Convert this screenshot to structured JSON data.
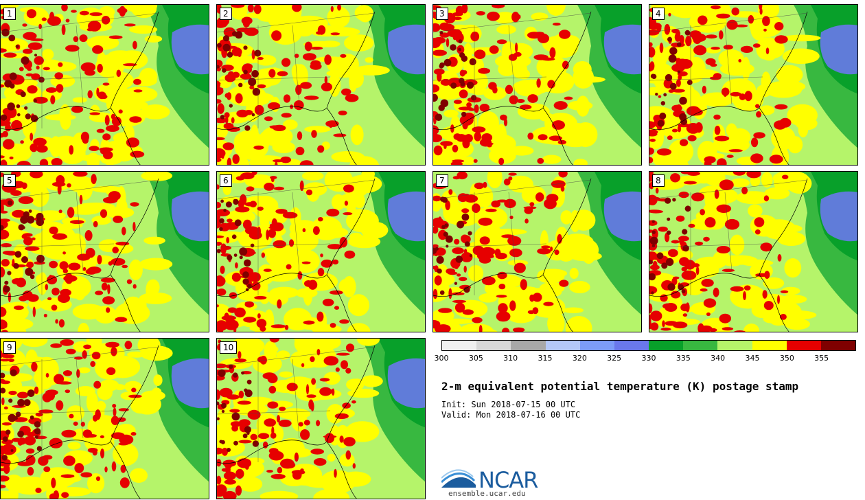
{
  "panels": [
    {
      "label": "1"
    },
    {
      "label": "2"
    },
    {
      "label": "3"
    },
    {
      "label": "4"
    },
    {
      "label": "5"
    },
    {
      "label": "6"
    },
    {
      "label": "7"
    },
    {
      "label": "8"
    },
    {
      "label": "9"
    },
    {
      "label": "10"
    }
  ],
  "colorbar": {
    "ticks": [
      "300",
      "305",
      "310",
      "315",
      "320",
      "325",
      "330",
      "335",
      "340",
      "345",
      "350",
      "355"
    ],
    "colors": [
      "#f0f0f0",
      "#d8d8d8",
      "#a8a8a8",
      "#b4c8f8",
      "#7c9cf8",
      "#6a78ec",
      "#08a02a",
      "#38b840",
      "#b5f46a",
      "#ffff00",
      "#e60000",
      "#7f0000"
    ]
  },
  "title": "2-m equivalent potential temperature (K) postage stamp",
  "init": "Init: Sun 2018-07-15 00 UTC",
  "valid": "Valid: Mon 2018-07-16 00 UTC",
  "logo": {
    "text": "NCAR",
    "url": "ensemble.ucar.edu"
  }
}
